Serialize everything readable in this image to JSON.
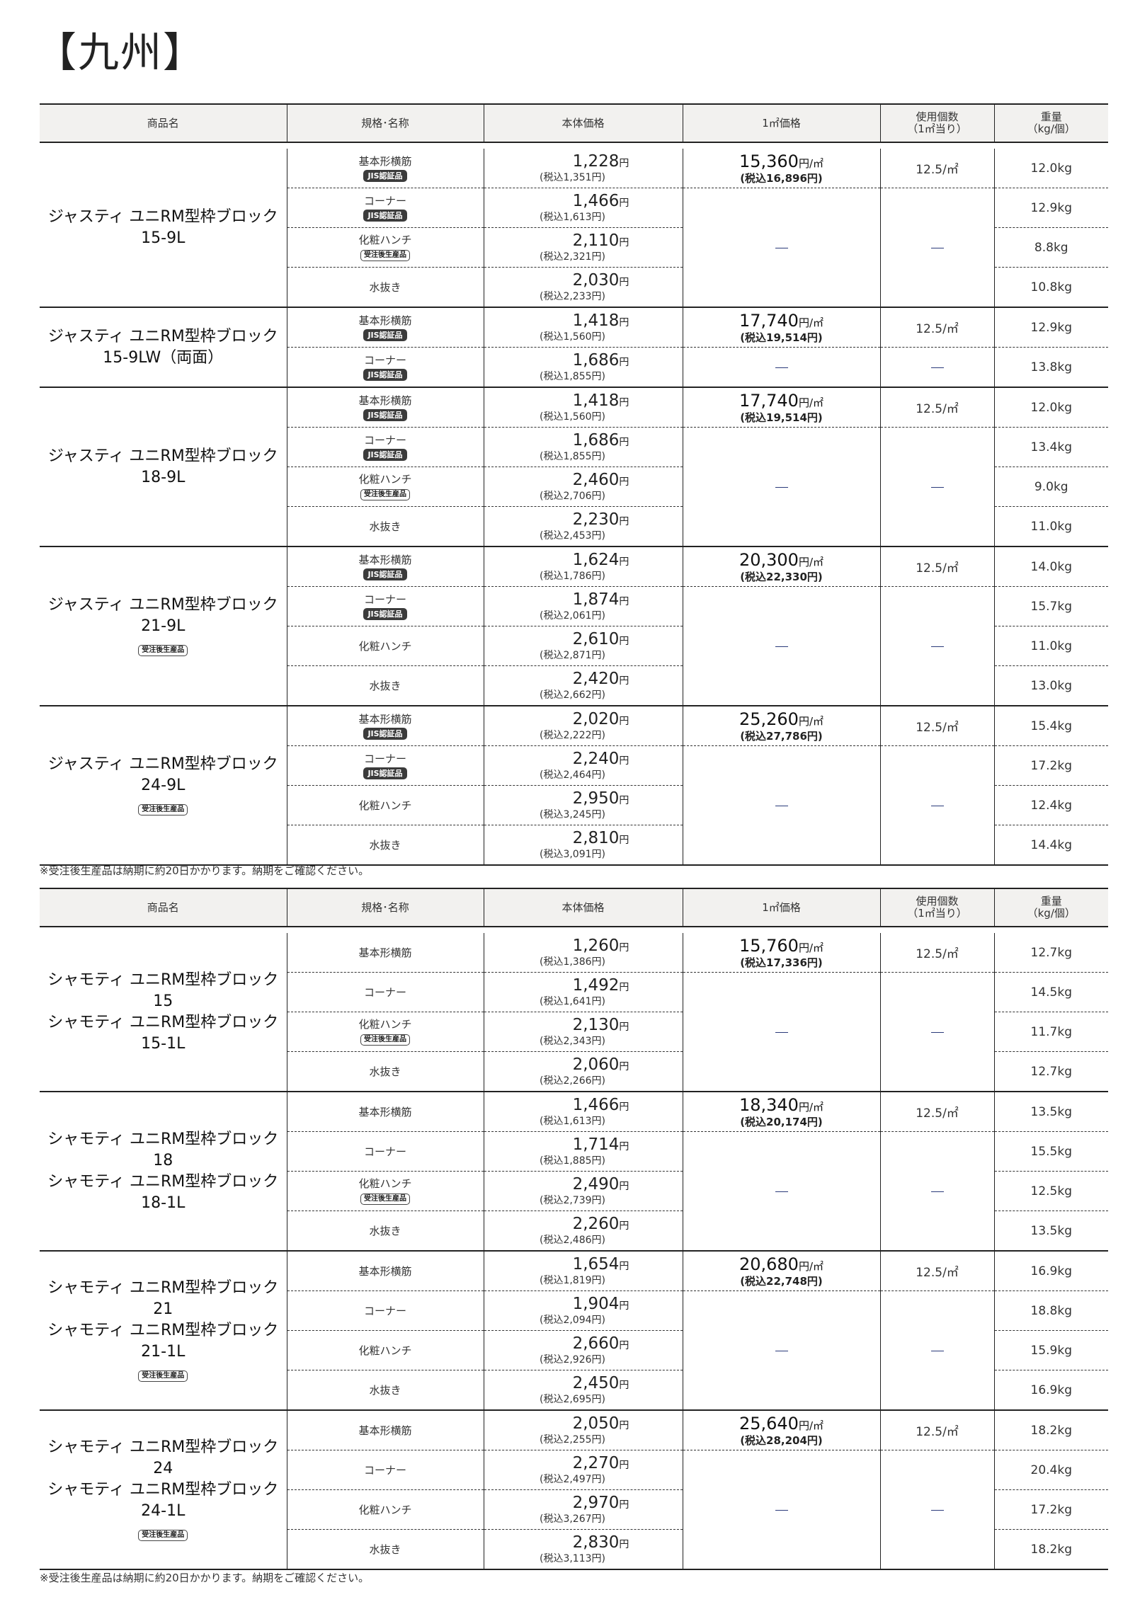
{
  "title": "【九州】",
  "headers": [
    "商品名",
    "規格･名称",
    "本体価格",
    "1㎡価格",
    "使用個数\n（1㎡当り）",
    "重量\n（kg/個）"
  ],
  "units": {
    "yen": "円",
    "per_m2": "円/㎡",
    "usage_unit": "/㎡",
    "dash": "—"
  },
  "badges": {
    "jis": "JIS認証品",
    "order": "受注後生産品"
  },
  "note": "※受注後生産品は納期に約20日かかります。納期をご確認ください。",
  "sections": [
    {
      "groups": [
        {
          "name": [
            "ジャスティ ユニRM型枠ブロック",
            "15-9L"
          ],
          "order_badge": false,
          "m2_price": "15,360",
          "m2_tax": "(税込16,896円)",
          "usage": "12.5",
          "rows": [
            {
              "spec": "基本形横筋",
              "badge": "jis",
              "price": "1,228",
              "tax": "(税込1,351円)",
              "weight": "12.0kg"
            },
            {
              "spec": "コーナー",
              "badge": "jis",
              "price": "1,466",
              "tax": "(税込1,613円)",
              "weight": "12.9kg"
            },
            {
              "spec": "化粧ハンチ",
              "badge": "order",
              "price": "2,110",
              "tax": "(税込2,321円)",
              "weight": "8.8kg"
            },
            {
              "spec": "水抜き",
              "badge": "",
              "price": "2,030",
              "tax": "(税込2,233円)",
              "weight": "10.8kg"
            }
          ]
        },
        {
          "name": [
            "ジャスティ ユニRM型枠ブロック",
            "15-9LW（両面）"
          ],
          "order_badge": false,
          "m2_price": "17,740",
          "m2_tax": "(税込19,514円)",
          "usage": "12.5",
          "rows": [
            {
              "spec": "基本形横筋",
              "badge": "jis",
              "price": "1,418",
              "tax": "(税込1,560円)",
              "weight": "12.9kg"
            },
            {
              "spec": "コーナー",
              "badge": "jis",
              "price": "1,686",
              "tax": "(税込1,855円)",
              "weight": "13.8kg"
            }
          ]
        },
        {
          "name": [
            "ジャスティ ユニRM型枠ブロック",
            "18-9L"
          ],
          "order_badge": false,
          "m2_price": "17,740",
          "m2_tax": "(税込19,514円)",
          "usage": "12.5",
          "rows": [
            {
              "spec": "基本形横筋",
              "badge": "jis",
              "price": "1,418",
              "tax": "(税込1,560円)",
              "weight": "12.0kg"
            },
            {
              "spec": "コーナー",
              "badge": "jis",
              "price": "1,686",
              "tax": "(税込1,855円)",
              "weight": "13.4kg"
            },
            {
              "spec": "化粧ハンチ",
              "badge": "order",
              "price": "2,460",
              "tax": "(税込2,706円)",
              "weight": "9.0kg"
            },
            {
              "spec": "水抜き",
              "badge": "",
              "price": "2,230",
              "tax": "(税込2,453円)",
              "weight": "11.0kg"
            }
          ]
        },
        {
          "name": [
            "ジャスティ ユニRM型枠ブロック",
            "21-9L"
          ],
          "order_badge": true,
          "m2_price": "20,300",
          "m2_tax": "(税込22,330円)",
          "usage": "12.5",
          "rows": [
            {
              "spec": "基本形横筋",
              "badge": "jis",
              "price": "1,624",
              "tax": "(税込1,786円)",
              "weight": "14.0kg"
            },
            {
              "spec": "コーナー",
              "badge": "jis",
              "price": "1,874",
              "tax": "(税込2,061円)",
              "weight": "15.7kg"
            },
            {
              "spec": "化粧ハンチ",
              "badge": "",
              "price": "2,610",
              "tax": "(税込2,871円)",
              "weight": "11.0kg"
            },
            {
              "spec": "水抜き",
              "badge": "",
              "price": "2,420",
              "tax": "(税込2,662円)",
              "weight": "13.0kg"
            }
          ]
        },
        {
          "name": [
            "ジャスティ ユニRM型枠ブロック",
            "24-9L"
          ],
          "order_badge": true,
          "m2_price": "25,260",
          "m2_tax": "(税込27,786円)",
          "usage": "12.5",
          "rows": [
            {
              "spec": "基本形横筋",
              "badge": "jis",
              "price": "2,020",
              "tax": "(税込2,222円)",
              "weight": "15.4kg"
            },
            {
              "spec": "コーナー",
              "badge": "jis",
              "price": "2,240",
              "tax": "(税込2,464円)",
              "weight": "17.2kg"
            },
            {
              "spec": "化粧ハンチ",
              "badge": "",
              "price": "2,950",
              "tax": "(税込3,245円)",
              "weight": "12.4kg"
            },
            {
              "spec": "水抜き",
              "badge": "",
              "price": "2,810",
              "tax": "(税込3,091円)",
              "weight": "14.4kg"
            }
          ]
        }
      ]
    },
    {
      "groups": [
        {
          "name": [
            "シャモティ ユニRM型枠ブロック",
            "15",
            "シャモティ ユニRM型枠ブロック",
            "15-1L"
          ],
          "order_badge": false,
          "m2_price": "15,760",
          "m2_tax": "(税込17,336円)",
          "usage": "12.5",
          "rows": [
            {
              "spec": "基本形横筋",
              "badge": "",
              "price": "1,260",
              "tax": "(税込1,386円)",
              "weight": "12.7kg"
            },
            {
              "spec": "コーナー",
              "badge": "",
              "price": "1,492",
              "tax": "(税込1,641円)",
              "weight": "14.5kg"
            },
            {
              "spec": "化粧ハンチ",
              "badge": "order",
              "price": "2,130",
              "tax": "(税込2,343円)",
              "weight": "11.7kg"
            },
            {
              "spec": "水抜き",
              "badge": "",
              "price": "2,060",
              "tax": "(税込2,266円)",
              "weight": "12.7kg"
            }
          ]
        },
        {
          "name": [
            "シャモティ ユニRM型枠ブロック",
            "18",
            "シャモティ ユニRM型枠ブロック",
            "18-1L"
          ],
          "order_badge": false,
          "m2_price": "18,340",
          "m2_tax": "(税込20,174円)",
          "usage": "12.5",
          "rows": [
            {
              "spec": "基本形横筋",
              "badge": "",
              "price": "1,466",
              "tax": "(税込1,613円)",
              "weight": "13.5kg"
            },
            {
              "spec": "コーナー",
              "badge": "",
              "price": "1,714",
              "tax": "(税込1,885円)",
              "weight": "15.5kg"
            },
            {
              "spec": "化粧ハンチ",
              "badge": "order",
              "price": "2,490",
              "tax": "(税込2,739円)",
              "weight": "12.5kg"
            },
            {
              "spec": "水抜き",
              "badge": "",
              "price": "2,260",
              "tax": "(税込2,486円)",
              "weight": "13.5kg"
            }
          ]
        },
        {
          "name": [
            "シャモティ ユニRM型枠ブロック",
            "21",
            "シャモティ ユニRM型枠ブロック",
            "21-1L"
          ],
          "order_badge": true,
          "m2_price": "20,680",
          "m2_tax": "(税込22,748円)",
          "usage": "12.5",
          "rows": [
            {
              "spec": "基本形横筋",
              "badge": "",
              "price": "1,654",
              "tax": "(税込1,819円)",
              "weight": "16.9kg"
            },
            {
              "spec": "コーナー",
              "badge": "",
              "price": "1,904",
              "tax": "(税込2,094円)",
              "weight": "18.8kg"
            },
            {
              "spec": "化粧ハンチ",
              "badge": "",
              "price": "2,660",
              "tax": "(税込2,926円)",
              "weight": "15.9kg"
            },
            {
              "spec": "水抜き",
              "badge": "",
              "price": "2,450",
              "tax": "(税込2,695円)",
              "weight": "16.9kg"
            }
          ]
        },
        {
          "name": [
            "シャモティ ユニRM型枠ブロック",
            "24",
            "シャモティ ユニRM型枠ブロック",
            "24-1L"
          ],
          "order_badge": true,
          "m2_price": "25,640",
          "m2_tax": "(税込28,204円)",
          "usage": "12.5",
          "rows": [
            {
              "spec": "基本形横筋",
              "badge": "",
              "price": "2,050",
              "tax": "(税込2,255円)",
              "weight": "18.2kg"
            },
            {
              "spec": "コーナー",
              "badge": "",
              "price": "2,270",
              "tax": "(税込2,497円)",
              "weight": "20.4kg"
            },
            {
              "spec": "化粧ハンチ",
              "badge": "",
              "price": "2,970",
              "tax": "(税込3,267円)",
              "weight": "17.2kg"
            },
            {
              "spec": "水抜き",
              "badge": "",
              "price": "2,830",
              "tax": "(税込3,113円)",
              "weight": "18.2kg"
            }
          ]
        }
      ]
    }
  ]
}
